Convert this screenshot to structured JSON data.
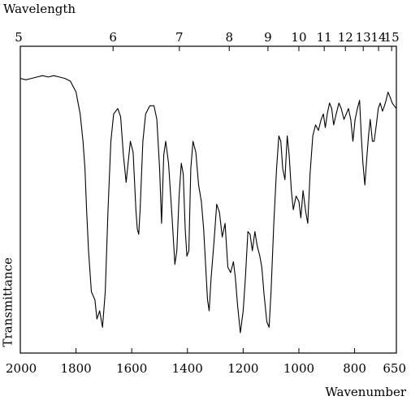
{
  "chart_data": {
    "type": "line",
    "title": "",
    "top_axis_label": "Wavelength",
    "xlabel": "Wavenumber",
    "ylabel": "Transmittance",
    "xlim": [
      2000,
      650
    ],
    "x_axis_reversed": true,
    "x_ticks": [
      "2000",
      "1800",
      "1600",
      "1400",
      "1200",
      "1000",
      "800",
      "650"
    ],
    "top_ticks": [
      {
        "label": "5",
        "wavenumber": 2000
      },
      {
        "label": "6",
        "wavenumber": 1667
      },
      {
        "label": "7",
        "wavenumber": 1429
      },
      {
        "label": "8",
        "wavenumber": 1250
      },
      {
        "label": "9",
        "wavenumber": 1111
      },
      {
        "label": "10",
        "wavenumber": 1000
      },
      {
        "label": "11",
        "wavenumber": 909
      },
      {
        "label": "12",
        "wavenumber": 833
      },
      {
        "label": "13",
        "wavenumber": 769
      },
      {
        "label": "14",
        "wavenumber": 714
      },
      {
        "label": "15",
        "wavenumber": 667
      }
    ],
    "ylim": [
      0,
      100
    ],
    "grid": false,
    "series": [
      {
        "line_color": "#000000",
        "points": [
          [
            2000,
            93
          ],
          [
            1980,
            92.5
          ],
          [
            1960,
            93
          ],
          [
            1940,
            93.5
          ],
          [
            1920,
            94
          ],
          [
            1900,
            93.5
          ],
          [
            1880,
            94
          ],
          [
            1860,
            93.5
          ],
          [
            1840,
            93
          ],
          [
            1820,
            92
          ],
          [
            1800,
            88
          ],
          [
            1785,
            80
          ],
          [
            1775,
            70
          ],
          [
            1768,
            60
          ],
          [
            1762,
            45
          ],
          [
            1755,
            30
          ],
          [
            1745,
            15
          ],
          [
            1732,
            12
          ],
          [
            1725,
            5
          ],
          [
            1715,
            8
          ],
          [
            1705,
            2
          ],
          [
            1695,
            15
          ],
          [
            1685,
            45
          ],
          [
            1675,
            70
          ],
          [
            1665,
            80
          ],
          [
            1650,
            82
          ],
          [
            1640,
            79
          ],
          [
            1630,
            65
          ],
          [
            1620,
            55
          ],
          [
            1615,
            60
          ],
          [
            1605,
            70
          ],
          [
            1595,
            66
          ],
          [
            1585,
            45
          ],
          [
            1580,
            38
          ],
          [
            1575,
            36
          ],
          [
            1570,
            45
          ],
          [
            1560,
            70
          ],
          [
            1550,
            80
          ],
          [
            1535,
            83
          ],
          [
            1520,
            83
          ],
          [
            1510,
            78
          ],
          [
            1500,
            60
          ],
          [
            1493,
            40
          ],
          [
            1485,
            65
          ],
          [
            1478,
            70
          ],
          [
            1468,
            62
          ],
          [
            1455,
            42
          ],
          [
            1445,
            25
          ],
          [
            1438,
            30
          ],
          [
            1430,
            50
          ],
          [
            1422,
            62
          ],
          [
            1415,
            58
          ],
          [
            1408,
            38
          ],
          [
            1402,
            28
          ],
          [
            1395,
            30
          ],
          [
            1388,
            60
          ],
          [
            1380,
            70
          ],
          [
            1370,
            66
          ],
          [
            1360,
            54
          ],
          [
            1350,
            48
          ],
          [
            1342,
            38
          ],
          [
            1335,
            25
          ],
          [
            1328,
            12
          ],
          [
            1322,
            8
          ],
          [
            1315,
            20
          ],
          [
            1305,
            33
          ],
          [
            1295,
            47
          ],
          [
            1285,
            44
          ],
          [
            1275,
            35
          ],
          [
            1265,
            40
          ],
          [
            1255,
            24
          ],
          [
            1245,
            22
          ],
          [
            1235,
            26
          ],
          [
            1228,
            20
          ],
          [
            1220,
            10
          ],
          [
            1210,
            0
          ],
          [
            1200,
            8
          ],
          [
            1192,
            20
          ],
          [
            1183,
            37
          ],
          [
            1175,
            36
          ],
          [
            1167,
            30
          ],
          [
            1158,
            37
          ],
          [
            1150,
            32
          ],
          [
            1140,
            28
          ],
          [
            1133,
            24
          ],
          [
            1125,
            14
          ],
          [
            1115,
            4
          ],
          [
            1107,
            2
          ],
          [
            1100,
            15
          ],
          [
            1090,
            40
          ],
          [
            1080,
            60
          ],
          [
            1072,
            72
          ],
          [
            1065,
            70
          ],
          [
            1058,
            60
          ],
          [
            1050,
            56
          ],
          [
            1042,
            72
          ],
          [
            1035,
            65
          ],
          [
            1027,
            52
          ],
          [
            1020,
            45
          ],
          [
            1010,
            50
          ],
          [
            1000,
            48
          ],
          [
            993,
            42
          ],
          [
            985,
            52
          ],
          [
            975,
            44
          ],
          [
            968,
            40
          ],
          [
            960,
            58
          ],
          [
            950,
            72
          ],
          [
            940,
            76
          ],
          [
            930,
            74
          ],
          [
            920,
            78
          ],
          [
            912,
            80
          ],
          [
            905,
            75
          ],
          [
            898,
            80
          ],
          [
            890,
            84
          ],
          [
            882,
            82
          ],
          [
            875,
            76
          ],
          [
            866,
            80
          ],
          [
            856,
            84
          ],
          [
            848,
            82
          ],
          [
            838,
            78
          ],
          [
            830,
            80
          ],
          [
            822,
            82
          ],
          [
            814,
            78
          ],
          [
            806,
            70
          ],
          [
            798,
            78
          ],
          [
            790,
            82
          ],
          [
            782,
            85
          ],
          [
            776,
            72
          ],
          [
            770,
            62
          ],
          [
            763,
            54
          ],
          [
            756,
            64
          ],
          [
            750,
            72
          ],
          [
            744,
            78
          ],
          [
            736,
            70
          ],
          [
            730,
            70
          ],
          [
            722,
            76
          ],
          [
            715,
            82
          ],
          [
            708,
            84
          ],
          [
            700,
            81
          ],
          [
            693,
            83
          ],
          [
            687,
            85
          ],
          [
            680,
            88
          ],
          [
            672,
            86
          ],
          [
            665,
            84
          ],
          [
            658,
            83
          ],
          [
            650,
            82
          ]
        ]
      }
    ]
  }
}
